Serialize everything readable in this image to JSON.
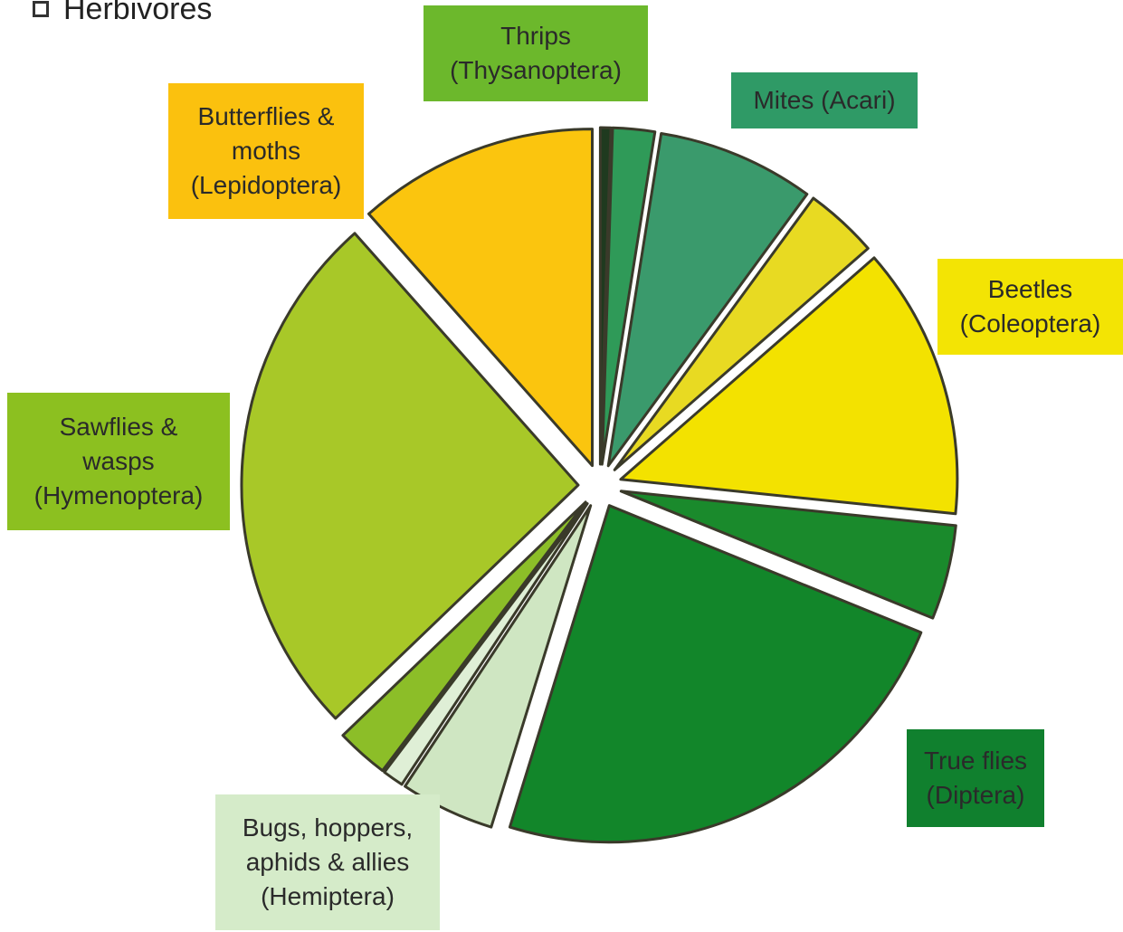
{
  "legend": {
    "label": "Herbivores"
  },
  "colors": {
    "outline": "#3a3a2a",
    "gap_gold": "#9c8c2c"
  },
  "chart_data": {
    "type": "pie",
    "title": "",
    "direction": "clockwise from 12 o'clock",
    "slices": [
      {
        "name": "Thrips (Thysanoptera)",
        "value": 0.5,
        "color": "#1f3a1f",
        "name_label": ""
      },
      {
        "name": "Thrips (Thysanoptera)",
        "value": 2.0,
        "color": "#2f9a58",
        "name_label": ""
      },
      {
        "name": "Mites (Acari)",
        "value": 7.5,
        "color": "#3a9a6c",
        "name_label": ""
      },
      {
        "name": "unlabeled",
        "value": 3.5,
        "color": "#e8da22",
        "name_label": ""
      },
      {
        "name": "Beetles (Coleoptera)",
        "value": 13.0,
        "color": "#f3e200",
        "name_label": ""
      },
      {
        "name": "unlabeled",
        "value": 4.5,
        "color": "#1a8a2c",
        "name_label": ""
      },
      {
        "name": "True flies (Diptera)",
        "value": 23.5,
        "color": "#12862a",
        "name_label": ""
      },
      {
        "name": "Bugs, hoppers, aphids & allies (Hemiptera)",
        "value": 4.5,
        "color": "#cfe6c2",
        "name_label": ""
      },
      {
        "name": "unlabeled",
        "value": 1.0,
        "color": "#dfefd6",
        "name_label": ""
      },
      {
        "name": "unlabeled",
        "value": 2.5,
        "color": "#8cbe28",
        "name_label": ""
      },
      {
        "name": "Sawflies & wasps (Hymenoptera)",
        "value": 25.5,
        "color": "#a8c828",
        "name_label": ""
      },
      {
        "name": "Butterflies & moths (Lepidoptera)",
        "value": 11.5,
        "color": "#fbc50e",
        "name_label": ""
      }
    ],
    "labels": [
      {
        "key": "thrips",
        "text": "Thrips\n(Thysanoptera)",
        "bg": "#6cb82c"
      },
      {
        "key": "mites",
        "text": "Mites (Acari)",
        "bg": "#2f9a66"
      },
      {
        "key": "butterflies",
        "text": "Butterflies &\nmoths\n(Lepidoptera)",
        "bg": "#fbc10e"
      },
      {
        "key": "beetles",
        "text": "Beetles\n(Coleoptera)",
        "bg": "#f3e404"
      },
      {
        "key": "sawflies",
        "text": "Sawflies &\nwasps\n(Hymenoptera)",
        "bg": "#8cc020"
      },
      {
        "key": "trueflies",
        "text": "True flies\n(Diptera)",
        "bg": "#10802e"
      },
      {
        "key": "bugs",
        "text": "Bugs, hoppers,\naphids & allies\n(Hemiptera)",
        "bg": "#d5ebc9"
      }
    ]
  }
}
